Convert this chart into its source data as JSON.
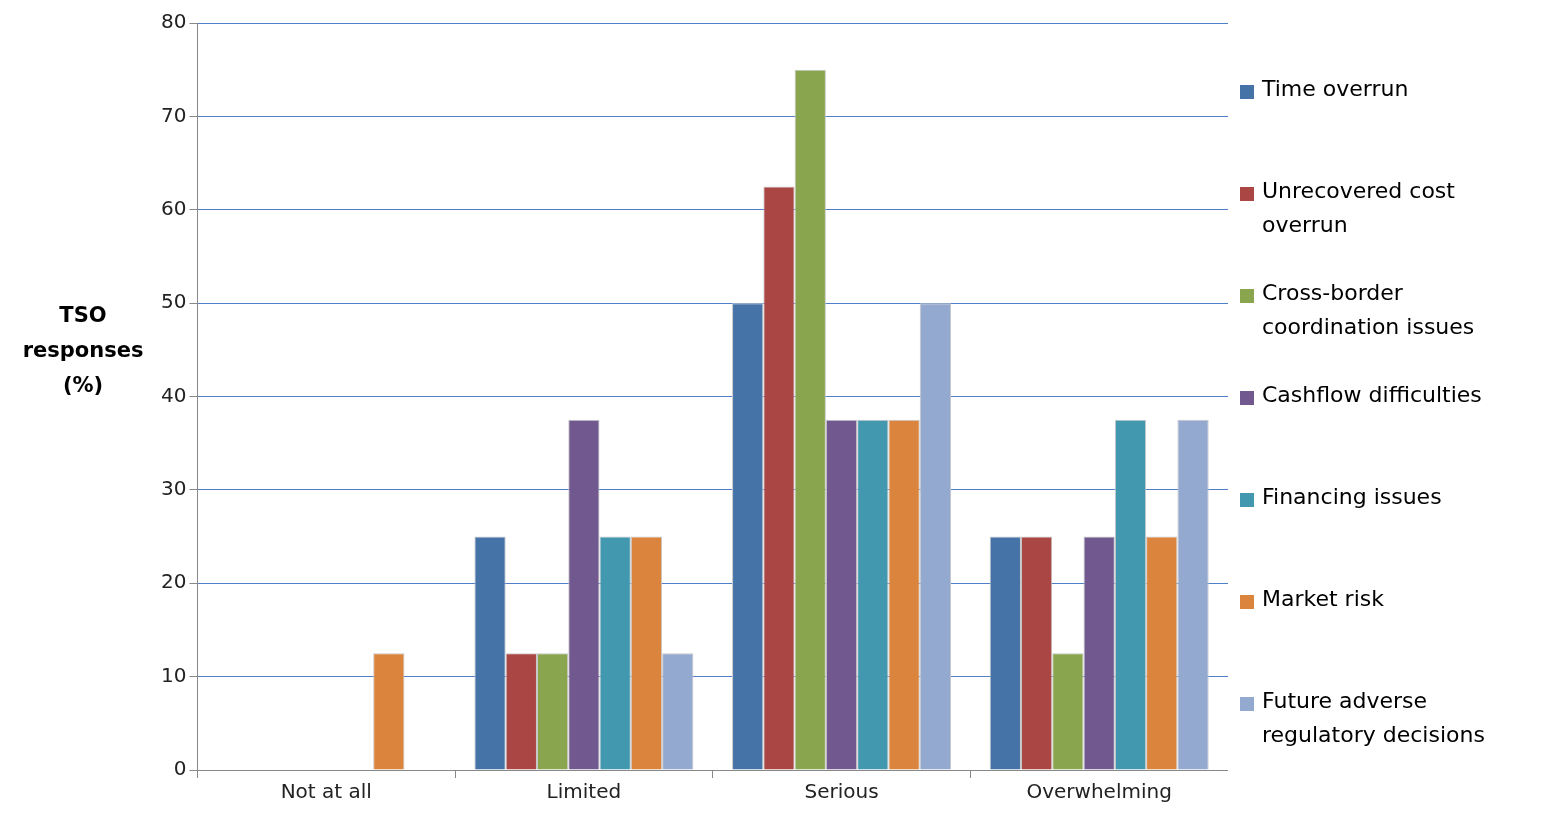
{
  "chart_data": {
    "type": "bar",
    "ylabel": "TSO responses (%)",
    "categories": [
      "Not at all",
      "Limited",
      "Serious",
      "Overwhelming"
    ],
    "series": [
      {
        "name": "Time overrun",
        "color": "#4572a7",
        "values": [
          0,
          25,
          50,
          25
        ]
      },
      {
        "name": "Unrecovered cost overrun",
        "color": "#aa4643",
        "values": [
          0,
          12.5,
          62.5,
          25
        ]
      },
      {
        "name": "Cross-border coordination issues",
        "color": "#89a54e",
        "values": [
          0,
          12.5,
          75,
          12.5
        ]
      },
      {
        "name": "Cashflow difficulties",
        "color": "#71588f",
        "values": [
          0,
          37.5,
          37.5,
          25
        ]
      },
      {
        "name": "Financing issues",
        "color": "#4198af",
        "values": [
          0,
          25,
          37.5,
          37.5
        ]
      },
      {
        "name": "Market risk",
        "color": "#db843d",
        "values": [
          12.5,
          25,
          37.5,
          25
        ]
      },
      {
        "name": "Future adverse regulatory decisions",
        "color": "#93a9cf",
        "values": [
          0,
          12.5,
          50,
          37.5
        ]
      }
    ],
    "ylim": [
      0,
      80
    ],
    "yticks": [
      0,
      10,
      20,
      30,
      40,
      50,
      60,
      70,
      80
    ],
    "grid": "y",
    "legend": "right"
  }
}
